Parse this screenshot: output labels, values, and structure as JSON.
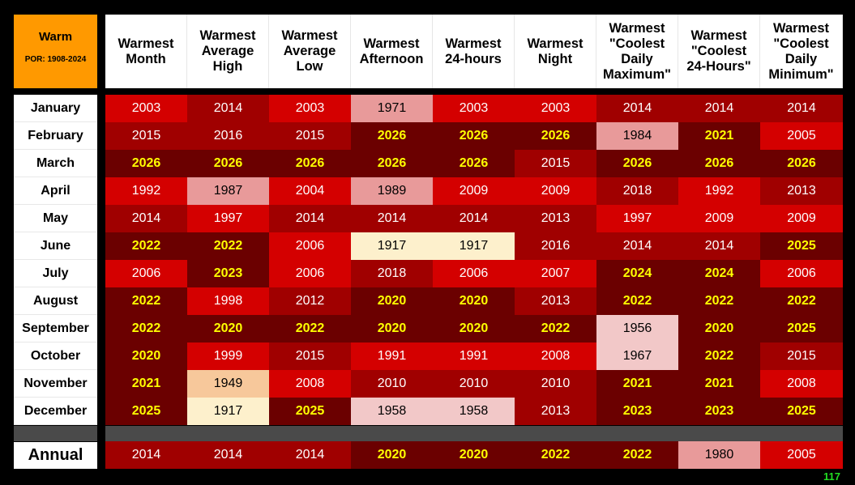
{
  "corner": {
    "title": "Warm",
    "subtitle": "POR: 1908-2024"
  },
  "columns": [
    "Warmest\nMonth",
    "Warmest\nAverage\nHigh",
    "Warmest\nAverage\nLow",
    "Warmest\nAfternoon",
    "Warmest\n24-hours",
    "Warmest\nNight",
    "Warmest\n\"Coolest\nDaily\nMaximum\"",
    "Warmest\n\"Coolest\n24-Hours\"",
    "Warmest\n\"Coolest\nDaily\nMinimum\""
  ],
  "colors": {
    "dark": "#6b0000",
    "mid": "#a00000",
    "red": "#d40000",
    "pink": "#e89a9a",
    "lightpink": "#f2c8c8",
    "peach": "#f7c89b",
    "cream": "#fdf0cc",
    "highlight_text": "#ffff00"
  },
  "rows": [
    {
      "label": "January",
      "cells": [
        {
          "v": "2003",
          "c": "red"
        },
        {
          "v": "2014",
          "c": "mid"
        },
        {
          "v": "2003",
          "c": "red"
        },
        {
          "v": "1971",
          "c": "pink"
        },
        {
          "v": "2003",
          "c": "red"
        },
        {
          "v": "2003",
          "c": "red"
        },
        {
          "v": "2014",
          "c": "mid"
        },
        {
          "v": "2014",
          "c": "mid"
        },
        {
          "v": "2014",
          "c": "mid"
        }
      ]
    },
    {
      "label": "February",
      "cells": [
        {
          "v": "2015",
          "c": "mid"
        },
        {
          "v": "2016",
          "c": "mid"
        },
        {
          "v": "2015",
          "c": "mid"
        },
        {
          "v": "2026",
          "c": "dark",
          "h": true
        },
        {
          "v": "2026",
          "c": "dark",
          "h": true
        },
        {
          "v": "2026",
          "c": "dark",
          "h": true
        },
        {
          "v": "1984",
          "c": "pink"
        },
        {
          "v": "2021",
          "c": "dark",
          "h": true
        },
        {
          "v": "2005",
          "c": "red"
        }
      ]
    },
    {
      "label": "March",
      "cells": [
        {
          "v": "2026",
          "c": "dark",
          "h": true
        },
        {
          "v": "2026",
          "c": "dark",
          "h": true
        },
        {
          "v": "2026",
          "c": "dark",
          "h": true
        },
        {
          "v": "2026",
          "c": "dark",
          "h": true
        },
        {
          "v": "2026",
          "c": "dark",
          "h": true
        },
        {
          "v": "2015",
          "c": "mid"
        },
        {
          "v": "2026",
          "c": "dark",
          "h": true
        },
        {
          "v": "2026",
          "c": "dark",
          "h": true
        },
        {
          "v": "2026",
          "c": "dark",
          "h": true
        }
      ]
    },
    {
      "label": "April",
      "cells": [
        {
          "v": "1992",
          "c": "red"
        },
        {
          "v": "1987",
          "c": "pink"
        },
        {
          "v": "2004",
          "c": "red"
        },
        {
          "v": "1989",
          "c": "pink"
        },
        {
          "v": "2009",
          "c": "red"
        },
        {
          "v": "2009",
          "c": "red"
        },
        {
          "v": "2018",
          "c": "mid"
        },
        {
          "v": "1992",
          "c": "red"
        },
        {
          "v": "2013",
          "c": "mid"
        }
      ]
    },
    {
      "label": "May",
      "cells": [
        {
          "v": "2014",
          "c": "mid"
        },
        {
          "v": "1997",
          "c": "red"
        },
        {
          "v": "2014",
          "c": "mid"
        },
        {
          "v": "2014",
          "c": "mid"
        },
        {
          "v": "2014",
          "c": "mid"
        },
        {
          "v": "2013",
          "c": "mid"
        },
        {
          "v": "1997",
          "c": "red"
        },
        {
          "v": "2009",
          "c": "red"
        },
        {
          "v": "2009",
          "c": "red"
        }
      ]
    },
    {
      "label": "June",
      "cells": [
        {
          "v": "2022",
          "c": "dark",
          "h": true
        },
        {
          "v": "2022",
          "c": "dark",
          "h": true
        },
        {
          "v": "2006",
          "c": "red"
        },
        {
          "v": "1917",
          "c": "cream"
        },
        {
          "v": "1917",
          "c": "cream"
        },
        {
          "v": "2016",
          "c": "mid"
        },
        {
          "v": "2014",
          "c": "mid"
        },
        {
          "v": "2014",
          "c": "mid"
        },
        {
          "v": "2025",
          "c": "dark",
          "h": true
        }
      ]
    },
    {
      "label": "July",
      "cells": [
        {
          "v": "2006",
          "c": "red"
        },
        {
          "v": "2023",
          "c": "dark",
          "h": true
        },
        {
          "v": "2006",
          "c": "red"
        },
        {
          "v": "2018",
          "c": "mid"
        },
        {
          "v": "2006",
          "c": "red"
        },
        {
          "v": "2007",
          "c": "red"
        },
        {
          "v": "2024",
          "c": "dark",
          "h": true
        },
        {
          "v": "2024",
          "c": "dark",
          "h": true
        },
        {
          "v": "2006",
          "c": "red"
        }
      ]
    },
    {
      "label": "August",
      "cells": [
        {
          "v": "2022",
          "c": "dark",
          "h": true
        },
        {
          "v": "1998",
          "c": "red"
        },
        {
          "v": "2012",
          "c": "mid"
        },
        {
          "v": "2020",
          "c": "dark",
          "h": true
        },
        {
          "v": "2020",
          "c": "dark",
          "h": true
        },
        {
          "v": "2013",
          "c": "mid"
        },
        {
          "v": "2022",
          "c": "dark",
          "h": true
        },
        {
          "v": "2022",
          "c": "dark",
          "h": true
        },
        {
          "v": "2022",
          "c": "dark",
          "h": true
        }
      ]
    },
    {
      "label": "September",
      "cells": [
        {
          "v": "2022",
          "c": "dark",
          "h": true
        },
        {
          "v": "2020",
          "c": "dark",
          "h": true
        },
        {
          "v": "2022",
          "c": "dark",
          "h": true
        },
        {
          "v": "2020",
          "c": "dark",
          "h": true
        },
        {
          "v": "2020",
          "c": "dark",
          "h": true
        },
        {
          "v": "2022",
          "c": "dark",
          "h": true
        },
        {
          "v": "1956",
          "c": "lightpink"
        },
        {
          "v": "2020",
          "c": "dark",
          "h": true
        },
        {
          "v": "2025",
          "c": "dark",
          "h": true
        }
      ]
    },
    {
      "label": "October",
      "cells": [
        {
          "v": "2020",
          "c": "dark",
          "h": true
        },
        {
          "v": "1999",
          "c": "red"
        },
        {
          "v": "2015",
          "c": "mid"
        },
        {
          "v": "1991",
          "c": "red"
        },
        {
          "v": "1991",
          "c": "red"
        },
        {
          "v": "2008",
          "c": "red"
        },
        {
          "v": "1967",
          "c": "lightpink"
        },
        {
          "v": "2022",
          "c": "dark",
          "h": true
        },
        {
          "v": "2015",
          "c": "mid"
        }
      ]
    },
    {
      "label": "November",
      "cells": [
        {
          "v": "2021",
          "c": "dark",
          "h": true
        },
        {
          "v": "1949",
          "c": "peach"
        },
        {
          "v": "2008",
          "c": "red"
        },
        {
          "v": "2010",
          "c": "mid"
        },
        {
          "v": "2010",
          "c": "mid"
        },
        {
          "v": "2010",
          "c": "mid"
        },
        {
          "v": "2021",
          "c": "dark",
          "h": true
        },
        {
          "v": "2021",
          "c": "dark",
          "h": true
        },
        {
          "v": "2008",
          "c": "red"
        }
      ]
    },
    {
      "label": "December",
      "cells": [
        {
          "v": "2025",
          "c": "dark",
          "h": true
        },
        {
          "v": "1917",
          "c": "cream"
        },
        {
          "v": "2025",
          "c": "dark",
          "h": true
        },
        {
          "v": "1958",
          "c": "lightpink"
        },
        {
          "v": "1958",
          "c": "lightpink"
        },
        {
          "v": "2013",
          "c": "mid"
        },
        {
          "v": "2023",
          "c": "dark",
          "h": true
        },
        {
          "v": "2023",
          "c": "dark",
          "h": true
        },
        {
          "v": "2025",
          "c": "dark",
          "h": true
        }
      ]
    }
  ],
  "annual": {
    "label": "Annual",
    "cells": [
      {
        "v": "2014",
        "c": "mid"
      },
      {
        "v": "2014",
        "c": "mid"
      },
      {
        "v": "2014",
        "c": "mid"
      },
      {
        "v": "2020",
        "c": "dark",
        "h": true
      },
      {
        "v": "2020",
        "c": "dark",
        "h": true
      },
      {
        "v": "2022",
        "c": "dark",
        "h": true
      },
      {
        "v": "2022",
        "c": "dark",
        "h": true
      },
      {
        "v": "1980",
        "c": "pink"
      },
      {
        "v": "2005",
        "c": "red"
      }
    ]
  },
  "page_number": "117"
}
